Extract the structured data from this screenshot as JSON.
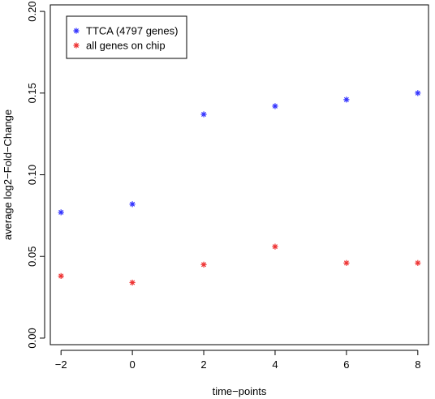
{
  "chart_data": {
    "type": "scatter",
    "title": "",
    "xlabel": "time−points",
    "ylabel": "average log2−Fold−Change",
    "xlim": [
      -2.3,
      8.3
    ],
    "ylim": [
      -0.004,
      0.204
    ],
    "xticks": [
      -2,
      0,
      2,
      4,
      6,
      8
    ],
    "xtick_labels": [
      "−2",
      "0",
      "2",
      "4",
      "6",
      "8"
    ],
    "yticks": [
      0.0,
      0.05,
      0.1,
      0.15,
      0.2
    ],
    "ytick_labels": [
      "0.00",
      "0.05",
      "0.10",
      "0.15",
      "0.20"
    ],
    "grid": false,
    "legend_position": "top-left",
    "series": [
      {
        "name": "TTCA (4797 genes)",
        "color": "#3333ff",
        "marker": "asterisk",
        "x": [
          -2,
          0,
          2,
          4,
          6,
          8
        ],
        "y": [
          0.077,
          0.082,
          0.137,
          0.142,
          0.146,
          0.15
        ]
      },
      {
        "name": "all genes on chip",
        "color": "#ee3333",
        "marker": "asterisk",
        "x": [
          -2,
          0,
          2,
          4,
          6,
          8
        ],
        "y": [
          0.038,
          0.034,
          0.045,
          0.056,
          0.046,
          0.046
        ]
      }
    ]
  }
}
